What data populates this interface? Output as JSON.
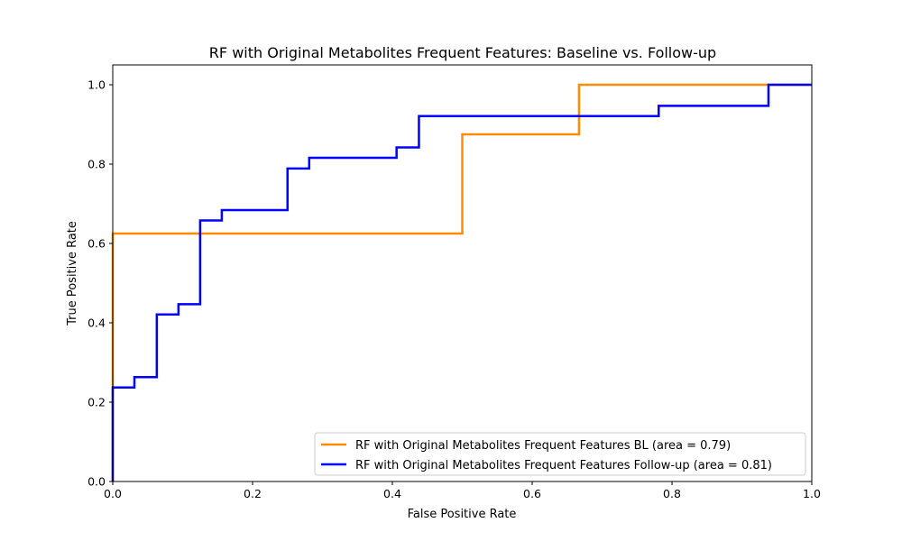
{
  "chart_data": {
    "type": "line",
    "title": "RF with Original Metabolites Frequent Features: Baseline vs. Follow-up",
    "xlabel": "False Positive Rate",
    "ylabel": "True Positive Rate",
    "xlim": [
      0.0,
      1.0
    ],
    "ylim": [
      0.0,
      1.05
    ],
    "x_ticks": [
      0.0,
      0.2,
      0.4,
      0.6,
      0.8,
      1.0
    ],
    "x_tick_labels": [
      "0.0",
      "0.2",
      "0.4",
      "0.6",
      "0.8",
      "1.0"
    ],
    "y_ticks": [
      0.0,
      0.2,
      0.4,
      0.6,
      0.8,
      1.0
    ],
    "y_tick_labels": [
      "0.0",
      "0.2",
      "0.4",
      "0.6",
      "0.8",
      "1.0"
    ],
    "grid": false,
    "legend_position": "lower-right",
    "series": [
      {
        "name": "RF with Original Metabolites Frequent Features BL (area = 0.79)",
        "color": "#ff8c00",
        "x": [
          0.0,
          0.0,
          0.5,
          0.5,
          0.667,
          0.667,
          1.0
        ],
        "y": [
          0.0,
          0.625,
          0.625,
          0.875,
          0.875,
          1.0,
          1.0
        ]
      },
      {
        "name": "RF with Original Metabolites Frequent Features Follow-up (area = 0.81)",
        "color": "#0000ff",
        "x": [
          0.0,
          0.0,
          0.031,
          0.031,
          0.063,
          0.063,
          0.094,
          0.094,
          0.125,
          0.125,
          0.156,
          0.156,
          0.25,
          0.25,
          0.281,
          0.281,
          0.406,
          0.406,
          0.438,
          0.438,
          0.781,
          0.781,
          0.938,
          0.938,
          1.0
        ],
        "y": [
          0.0,
          0.237,
          0.237,
          0.263,
          0.263,
          0.421,
          0.421,
          0.447,
          0.447,
          0.658,
          0.658,
          0.684,
          0.684,
          0.789,
          0.789,
          0.816,
          0.816,
          0.842,
          0.842,
          0.921,
          0.921,
          0.947,
          0.947,
          1.0,
          1.0
        ]
      }
    ]
  }
}
